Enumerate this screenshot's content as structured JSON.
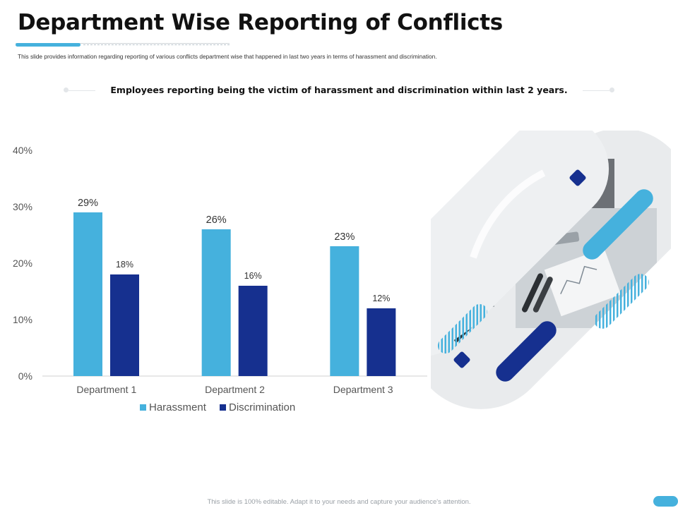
{
  "title": "Department Wise Reporting of Conflicts",
  "description": "This slide provides information regarding reporting of various conflicts department wise that happened in last two years in terms of harassment and discrimination.",
  "subtitle": "Employees reporting being the victim of harassment and discrimination  within last 2 years.",
  "footer": "This slide is 100% editable. Adapt it to your needs and capture your audience's attention.",
  "colors": {
    "harassment": "#45b1dd",
    "discrimination": "#16308f",
    "accent": "#45b1dd"
  },
  "chart_data": {
    "type": "bar",
    "title": "",
    "xlabel": "",
    "ylabel": "",
    "categories": [
      "Department 1",
      "Department 2",
      "Department 3"
    ],
    "series": [
      {
        "name": "Harassment",
        "values": [
          29,
          26,
          23
        ],
        "labels": [
          "29%",
          "26%",
          "23%"
        ]
      },
      {
        "name": "Discrimination",
        "values": [
          18,
          16,
          12
        ],
        "labels": [
          "18%",
          "16%",
          "12%"
        ]
      }
    ],
    "ylim": [
      0,
      40
    ],
    "yticks": [
      0,
      10,
      20,
      30,
      40
    ],
    "ytick_labels": [
      "0%",
      "10%",
      "20%",
      "30%",
      "40%"
    ],
    "grid": false,
    "legend": "bottom"
  }
}
